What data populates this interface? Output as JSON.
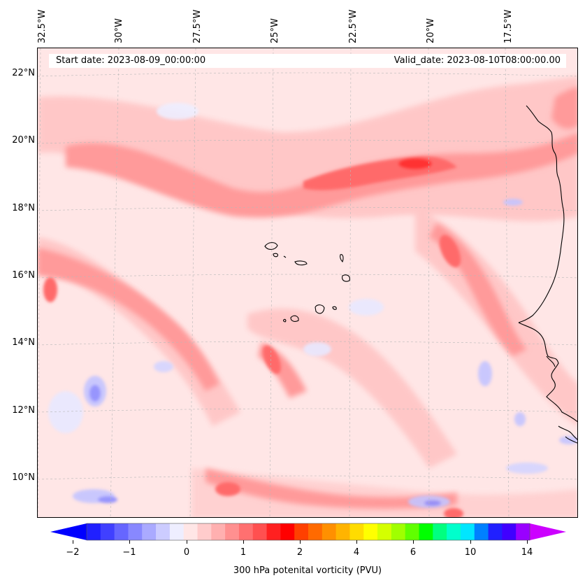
{
  "map": {
    "info_left": "Start date: 2023-08-09_00:00:00",
    "info_right": "Valid_date: 2023-08-10T08:00:00.00",
    "lon_labels": [
      "32.5°W",
      "30°W",
      "27.5°W",
      "25°W",
      "22.5°W",
      "20°W",
      "17.5°W"
    ],
    "lat_labels": [
      "22°N",
      "20°N",
      "18°N",
      "16°N",
      "14°N",
      "12°N",
      "10°N"
    ],
    "field": "300 hPa potential vorticity",
    "colors": {
      "background": "#ffe6e6",
      "light_red": "#ffc6c6",
      "mid_red": "#ff9a9a",
      "strong_red": "#ff6a6a",
      "deep_red": "#ff3030",
      "light_blue": "#e8e8ff",
      "mid_blue": "#c4c4ff",
      "deep_blue": "#8c8cff",
      "coast": "#000000"
    }
  },
  "colorbar": {
    "label": "300 hPa potenital vorticity (PVU)",
    "tick_labels": [
      "−2",
      "−1",
      "0",
      "1",
      "2",
      "4",
      "6",
      "10",
      "14"
    ],
    "colors": [
      "#0000ff",
      "#2020ff",
      "#4040ff",
      "#6666ff",
      "#8888ff",
      "#aaaaff",
      "#ccccff",
      "#eeeeff",
      "#ffe6e6",
      "#ffcccc",
      "#ffb0b0",
      "#ff9090",
      "#ff7070",
      "#ff5050",
      "#ff2020",
      "#ff0000",
      "#ff4000",
      "#ff6a00",
      "#ff9000",
      "#ffb400",
      "#ffdc00",
      "#ffff00",
      "#d4ff00",
      "#a0ff00",
      "#60ff00",
      "#00ff00",
      "#00ff80",
      "#00ffcc",
      "#00e6ff",
      "#0080ff",
      "#2020ff",
      "#4000ff",
      "#9900ff",
      "#cc00ff"
    ]
  }
}
